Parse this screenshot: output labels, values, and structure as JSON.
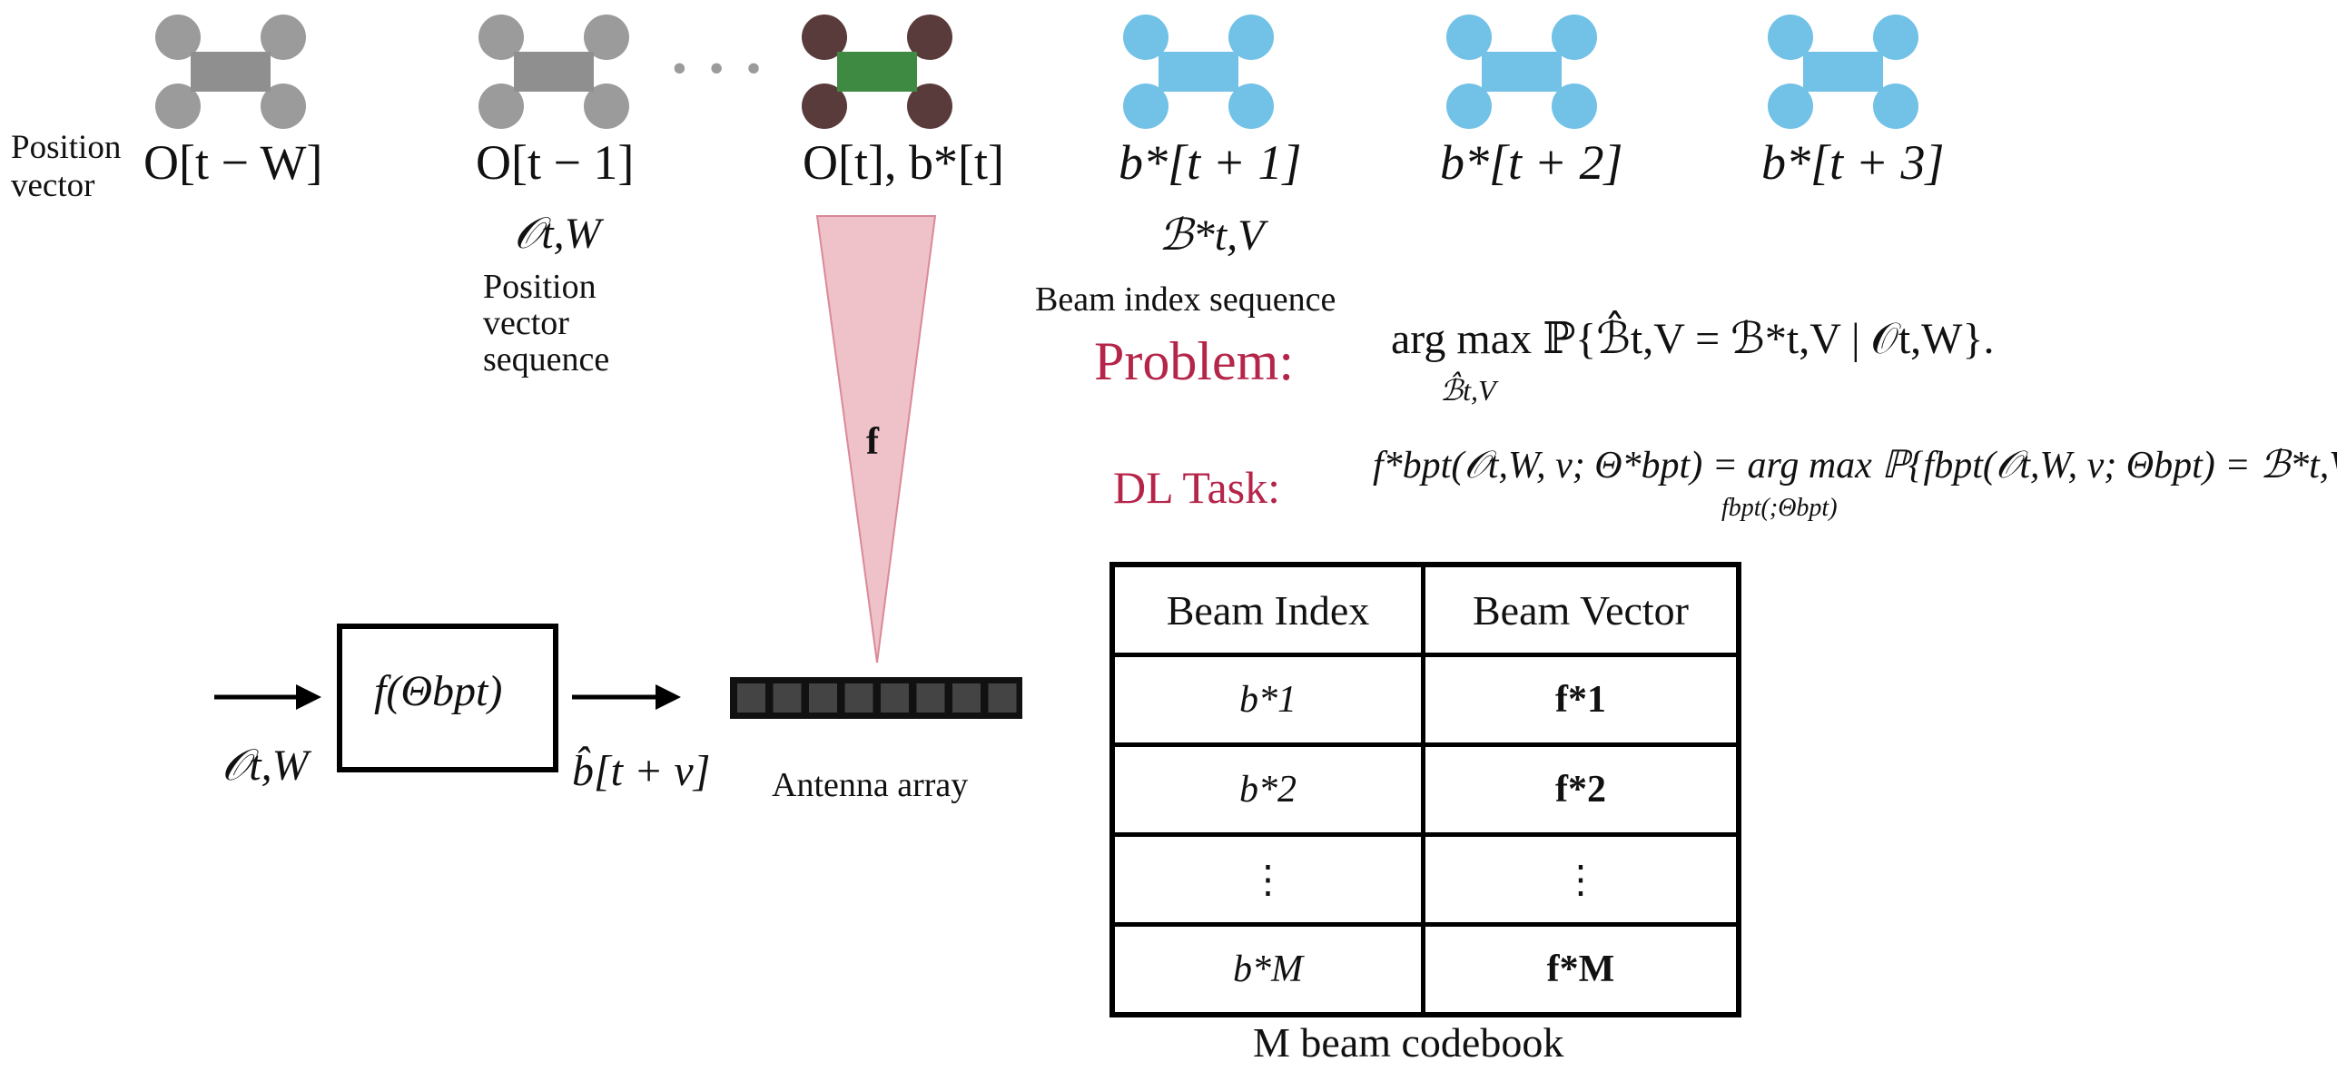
{
  "position_vector_label": "Position\nvector",
  "time_labels": {
    "t_minus_W": "O[t − W]",
    "t_minus_1": "O[t − 1]",
    "t_current": "O[t], b*[t]",
    "t_plus_1": "b*[t + 1]",
    "t_plus_2": "b*[t + 2]",
    "t_plus_3": "b*[t + 3]"
  },
  "ellipsis": "• • •",
  "position_sequence_symbol": "𝒪t,W",
  "position_sequence_label": "Position\nvector\nsequence",
  "beam_sequence_symbol": "ℬ*t,V",
  "beam_sequence_label": "Beam index sequence",
  "beam_symbol": "f",
  "problem_label": "Problem:",
  "problem_formula": "arg max ℙ{ℬ̂t,V = ℬ*t,V | 𝒪t,W}.",
  "problem_subscript": "ℬ̂t,V",
  "dl_task_label": "DL Task:",
  "dl_task_formula": "f*bpt(𝒪t,W, v; Θ*bpt) = arg max ℙ{fbpt(𝒪t,W, v; Θbpt) = ℬ*t,V}",
  "dl_task_subscript": "fbpt(;Θbpt)",
  "model_box_label": "f(Θbpt)",
  "model_input_label": "𝒪t,W",
  "model_output_label": "b̂[t + v]",
  "antenna_label": "Antenna array",
  "codebook": {
    "headers": [
      "Beam Index",
      "Beam Vector"
    ],
    "rows": [
      [
        "b*1",
        "f*1"
      ],
      [
        "b*2",
        "f*2"
      ],
      [
        "⋮",
        "⋮"
      ],
      [
        "b*M",
        "f*M"
      ]
    ],
    "caption": "M beam codebook"
  },
  "colors": {
    "past_vehicle": "#9b9b9b",
    "current_wheels": "#5a3b3b",
    "current_body": "#3f8a42",
    "future_vehicle": "#72c1e6",
    "beam": "#efc1c9",
    "beam_stroke": "#d98a98",
    "accent_red": "#b5254a",
    "antenna": "#1e1e1e"
  }
}
